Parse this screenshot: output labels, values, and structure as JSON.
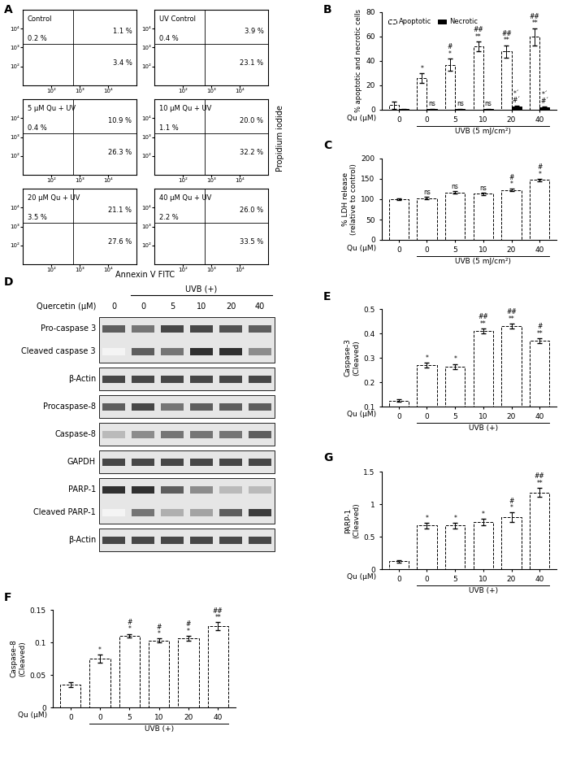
{
  "chart_data": [
    {
      "panel": "A",
      "type": "quadrant",
      "x_label": "Annexin V FITC",
      "y_label": "Propidium iodide",
      "log": true,
      "xlim": [
        10,
        100000
      ],
      "ylim": [
        10,
        100000
      ],
      "xticks": [
        {
          "value": 100,
          "label": "10²"
        },
        {
          "value": 1000,
          "label": "10³"
        },
        {
          "value": 10000,
          "label": "10⁴"
        }
      ],
      "yticks": [
        {
          "value": 100,
          "label": "10²"
        },
        {
          "value": 1000,
          "label": "10³"
        },
        {
          "value": 10000,
          "label": "10⁴"
        }
      ],
      "quadrant_gates": {
        "x": 600,
        "y": 1500
      },
      "plots": [
        {
          "title": "Control",
          "upper_left": "0.2 %",
          "upper_right": "1.1 %",
          "lower_right": "3.4 %"
        },
        {
          "title": "UV Control",
          "upper_left": "0.4 %",
          "upper_right": "3.9 %",
          "lower_right": "23.1 %"
        },
        {
          "title": "5 µM Qu + UV",
          "upper_left": "0.4 %",
          "upper_right": "10.9 %",
          "lower_right": "26.3 %"
        },
        {
          "title": "10 µM Qu + UV",
          "upper_left": "1.1 %",
          "upper_right": "20.0 %",
          "lower_right": "32.2 %"
        },
        {
          "title": "20 µM Qu + UV",
          "upper_left": "3.5 %",
          "upper_right": "21.1 %",
          "lower_right": "27.6 %"
        },
        {
          "title": "40 µM Qu + UV",
          "upper_left": "2.2 %",
          "upper_right": "26.0 %",
          "lower_right": "33.5 %"
        }
      ]
    },
    {
      "panel": "B",
      "type": "bar",
      "x_label": "Qu (µM)",
      "group_label": "UVB (5 mJ/cm²)",
      "y_label": "% apoptotic and necrotic cells",
      "categories": [
        "0",
        "0",
        "5",
        "10",
        "20",
        "40"
      ],
      "ylim": [
        0,
        80
      ],
      "yticks": [
        0,
        20,
        40,
        60,
        80
      ],
      "legend": "upper left",
      "series": [
        {
          "name": "Apoptotic",
          "color": "#ffffff",
          "line_style": "dashed",
          "values": [
            4,
            26,
            37,
            52,
            48,
            60
          ],
          "errors": [
            3,
            4,
            5,
            4,
            5,
            7
          ],
          "annotations": [
            null,
            "*",
            "#\n*",
            "##\n**",
            "##\n**",
            "##\n**"
          ]
        },
        {
          "name": "Necrotic",
          "color": "#000000",
          "line_style": "solid",
          "values": [
            0.5,
            0.5,
            0.5,
            0.5,
            2.5,
            2
          ],
          "errors": [
            0.3,
            0.3,
            0.3,
            0.3,
            1,
            1
          ],
          "annotations": [
            null,
            "ns",
            "ns",
            "ns",
            "*´\n#´",
            "*´\n#´"
          ]
        }
      ]
    },
    {
      "panel": "C",
      "type": "bar",
      "x_label": "Qu (µM)",
      "group_label": "UVB (5 mJ/cm²)",
      "y_label": "% LDH release\n(relative to control)",
      "categories": [
        "0",
        "0",
        "5",
        "10",
        "20",
        "40"
      ],
      "ylim": [
        0,
        200
      ],
      "yticks": [
        0,
        50,
        100,
        150,
        200
      ],
      "color": "#ffffff",
      "line_style": "dashed",
      "values": [
        100,
        102,
        116,
        113,
        122,
        147
      ],
      "errors": [
        2,
        3,
        3,
        3,
        3,
        3
      ],
      "annotations": [
        null,
        "ns",
        "ns",
        "ns",
        "#\n*",
        "#\n*"
      ]
    },
    {
      "panel": "D",
      "type": "blot",
      "group_label": "UVB (+)",
      "x_label": "Quercetin (µM)",
      "categories": [
        "0",
        "0",
        "5",
        "10",
        "20",
        "40"
      ],
      "blocks": [
        [
          {
            "label": "Pro-caspase 3",
            "band_intensity": [
              0.7,
              0.6,
              0.8,
              0.8,
              0.75,
              0.7
            ]
          },
          {
            "label": "Cleaved caspase 3",
            "band_intensity": [
              0.05,
              0.7,
              0.6,
              0.9,
              0.9,
              0.5
            ]
          }
        ],
        [
          {
            "label": "β-Actin",
            "band_intensity": [
              0.8,
              0.8,
              0.8,
              0.8,
              0.8,
              0.8
            ]
          }
        ],
        [
          {
            "label": "Procaspase-8",
            "band_intensity": [
              0.7,
              0.8,
              0.6,
              0.7,
              0.7,
              0.7
            ]
          }
        ],
        [
          {
            "label": "Caspase-8",
            "band_intensity": [
              0.3,
              0.5,
              0.6,
              0.6,
              0.6,
              0.7
            ]
          }
        ],
        [
          {
            "label": "GAPDH",
            "band_intensity": [
              0.8,
              0.8,
              0.8,
              0.8,
              0.8,
              0.8
            ]
          }
        ],
        [
          {
            "label": "PARP-1",
            "band_intensity": [
              0.9,
              0.9,
              0.7,
              0.5,
              0.3,
              0.3
            ]
          },
          {
            "label": "Cleaved PARP-1",
            "band_intensity": [
              0.05,
              0.6,
              0.35,
              0.4,
              0.7,
              0.85
            ]
          }
        ],
        [
          {
            "label": "β-Actin",
            "band_intensity": [
              0.8,
              0.8,
              0.8,
              0.8,
              0.8,
              0.8
            ]
          }
        ]
      ]
    },
    {
      "panel": "E",
      "type": "bar",
      "x_label": "Qu (µM)",
      "group_label": "UVB (+)",
      "y_label": "Caspase-3\n(Cleaved)",
      "categories": [
        "0",
        "0",
        "5",
        "10",
        "20",
        "40"
      ],
      "ylim": [
        0.1,
        0.5
      ],
      "yticks": [
        0.1,
        0.2,
        0.3,
        0.4,
        0.5
      ],
      "color": "#ffffff",
      "line_style": "dashed",
      "values": [
        0.125,
        0.27,
        0.265,
        0.41,
        0.43,
        0.37
      ],
      "errors": [
        0.005,
        0.01,
        0.01,
        0.01,
        0.01,
        0.01
      ],
      "annotations": [
        null,
        "*",
        "*",
        "##\n**",
        "##\n**",
        "#\n**"
      ]
    },
    {
      "panel": "F",
      "type": "bar",
      "x_label": "Qu (µM)",
      "group_label": "UVB (+)",
      "y_label": "Caspase-8\n(Cleaved)",
      "categories": [
        "0",
        "0",
        "5",
        "10",
        "20",
        "40"
      ],
      "ylim": [
        0,
        0.15
      ],
      "yticks": [
        0,
        0.05,
        0.1,
        0.15
      ],
      "color": "#ffffff",
      "line_style": "dashed",
      "values": [
        0.035,
        0.075,
        0.11,
        0.103,
        0.106,
        0.125
      ],
      "errors": [
        0.004,
        0.006,
        0.003,
        0.003,
        0.004,
        0.006
      ],
      "annotations": [
        null,
        "*",
        "#\n*",
        "#\n*",
        "#\n*",
        "##\n**"
      ]
    },
    {
      "panel": "G",
      "type": "bar",
      "x_label": "Qu (µM)",
      "group_label": "UVB (+)",
      "y_label": "PARP-1\n(Cleaved)",
      "categories": [
        "0",
        "0",
        "5",
        "10",
        "20",
        "40"
      ],
      "ylim": [
        0,
        1.5
      ],
      "yticks": [
        0,
        0.5,
        1,
        1.5
      ],
      "color": "#ffffff",
      "line_style": "dashed",
      "values": [
        0.12,
        0.67,
        0.67,
        0.72,
        0.8,
        1.18
      ],
      "errors": [
        0.02,
        0.04,
        0.04,
        0.05,
        0.07,
        0.07
      ],
      "annotations": [
        null,
        "*",
        "*",
        "*",
        "#\n*",
        "##\n**"
      ]
    }
  ]
}
